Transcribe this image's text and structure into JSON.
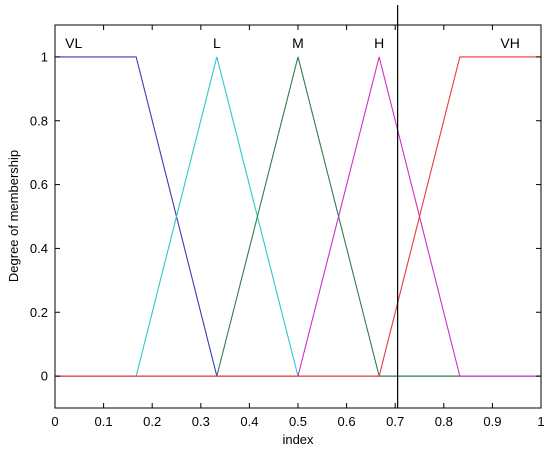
{
  "chart_data": {
    "type": "line",
    "title": "",
    "xlabel": "index",
    "ylabel": "Degree of membership",
    "xlim": [
      0,
      1
    ],
    "ylim": [
      -0.1,
      1.1
    ],
    "x_ticks": [
      "0",
      "0.1",
      "0.2",
      "0.3",
      "0.4",
      "0.5",
      "0.6",
      "0.7",
      "0.8",
      "0.9",
      "1"
    ],
    "y_ticks": [
      "0",
      "0.2",
      "0.4",
      "0.6",
      "0.8",
      "1"
    ],
    "grid": false,
    "vertical_marker_x": 0.705,
    "series": [
      {
        "name": "VL",
        "color": "#3b3bb0",
        "x": [
          0,
          0.167,
          0.333,
          1
        ],
        "y": [
          1,
          1,
          0,
          0
        ]
      },
      {
        "name": "L",
        "color": "#2ec8c8",
        "x": [
          0,
          0.167,
          0.333,
          0.5,
          1
        ],
        "y": [
          0,
          0,
          1,
          0,
          0
        ]
      },
      {
        "name": "M",
        "color": "#2e7d4a",
        "x": [
          0,
          0.333,
          0.5,
          0.667,
          1
        ],
        "y": [
          0,
          0,
          1,
          0,
          0
        ]
      },
      {
        "name": "H",
        "color": "#d02ec8",
        "x": [
          0,
          0.5,
          0.667,
          0.833,
          1
        ],
        "y": [
          0,
          0,
          1,
          0,
          0
        ]
      },
      {
        "name": "VH",
        "color": "#e83a3a",
        "x": [
          0,
          0.667,
          0.833,
          1
        ],
        "y": [
          0,
          0,
          1,
          1
        ]
      }
    ]
  }
}
